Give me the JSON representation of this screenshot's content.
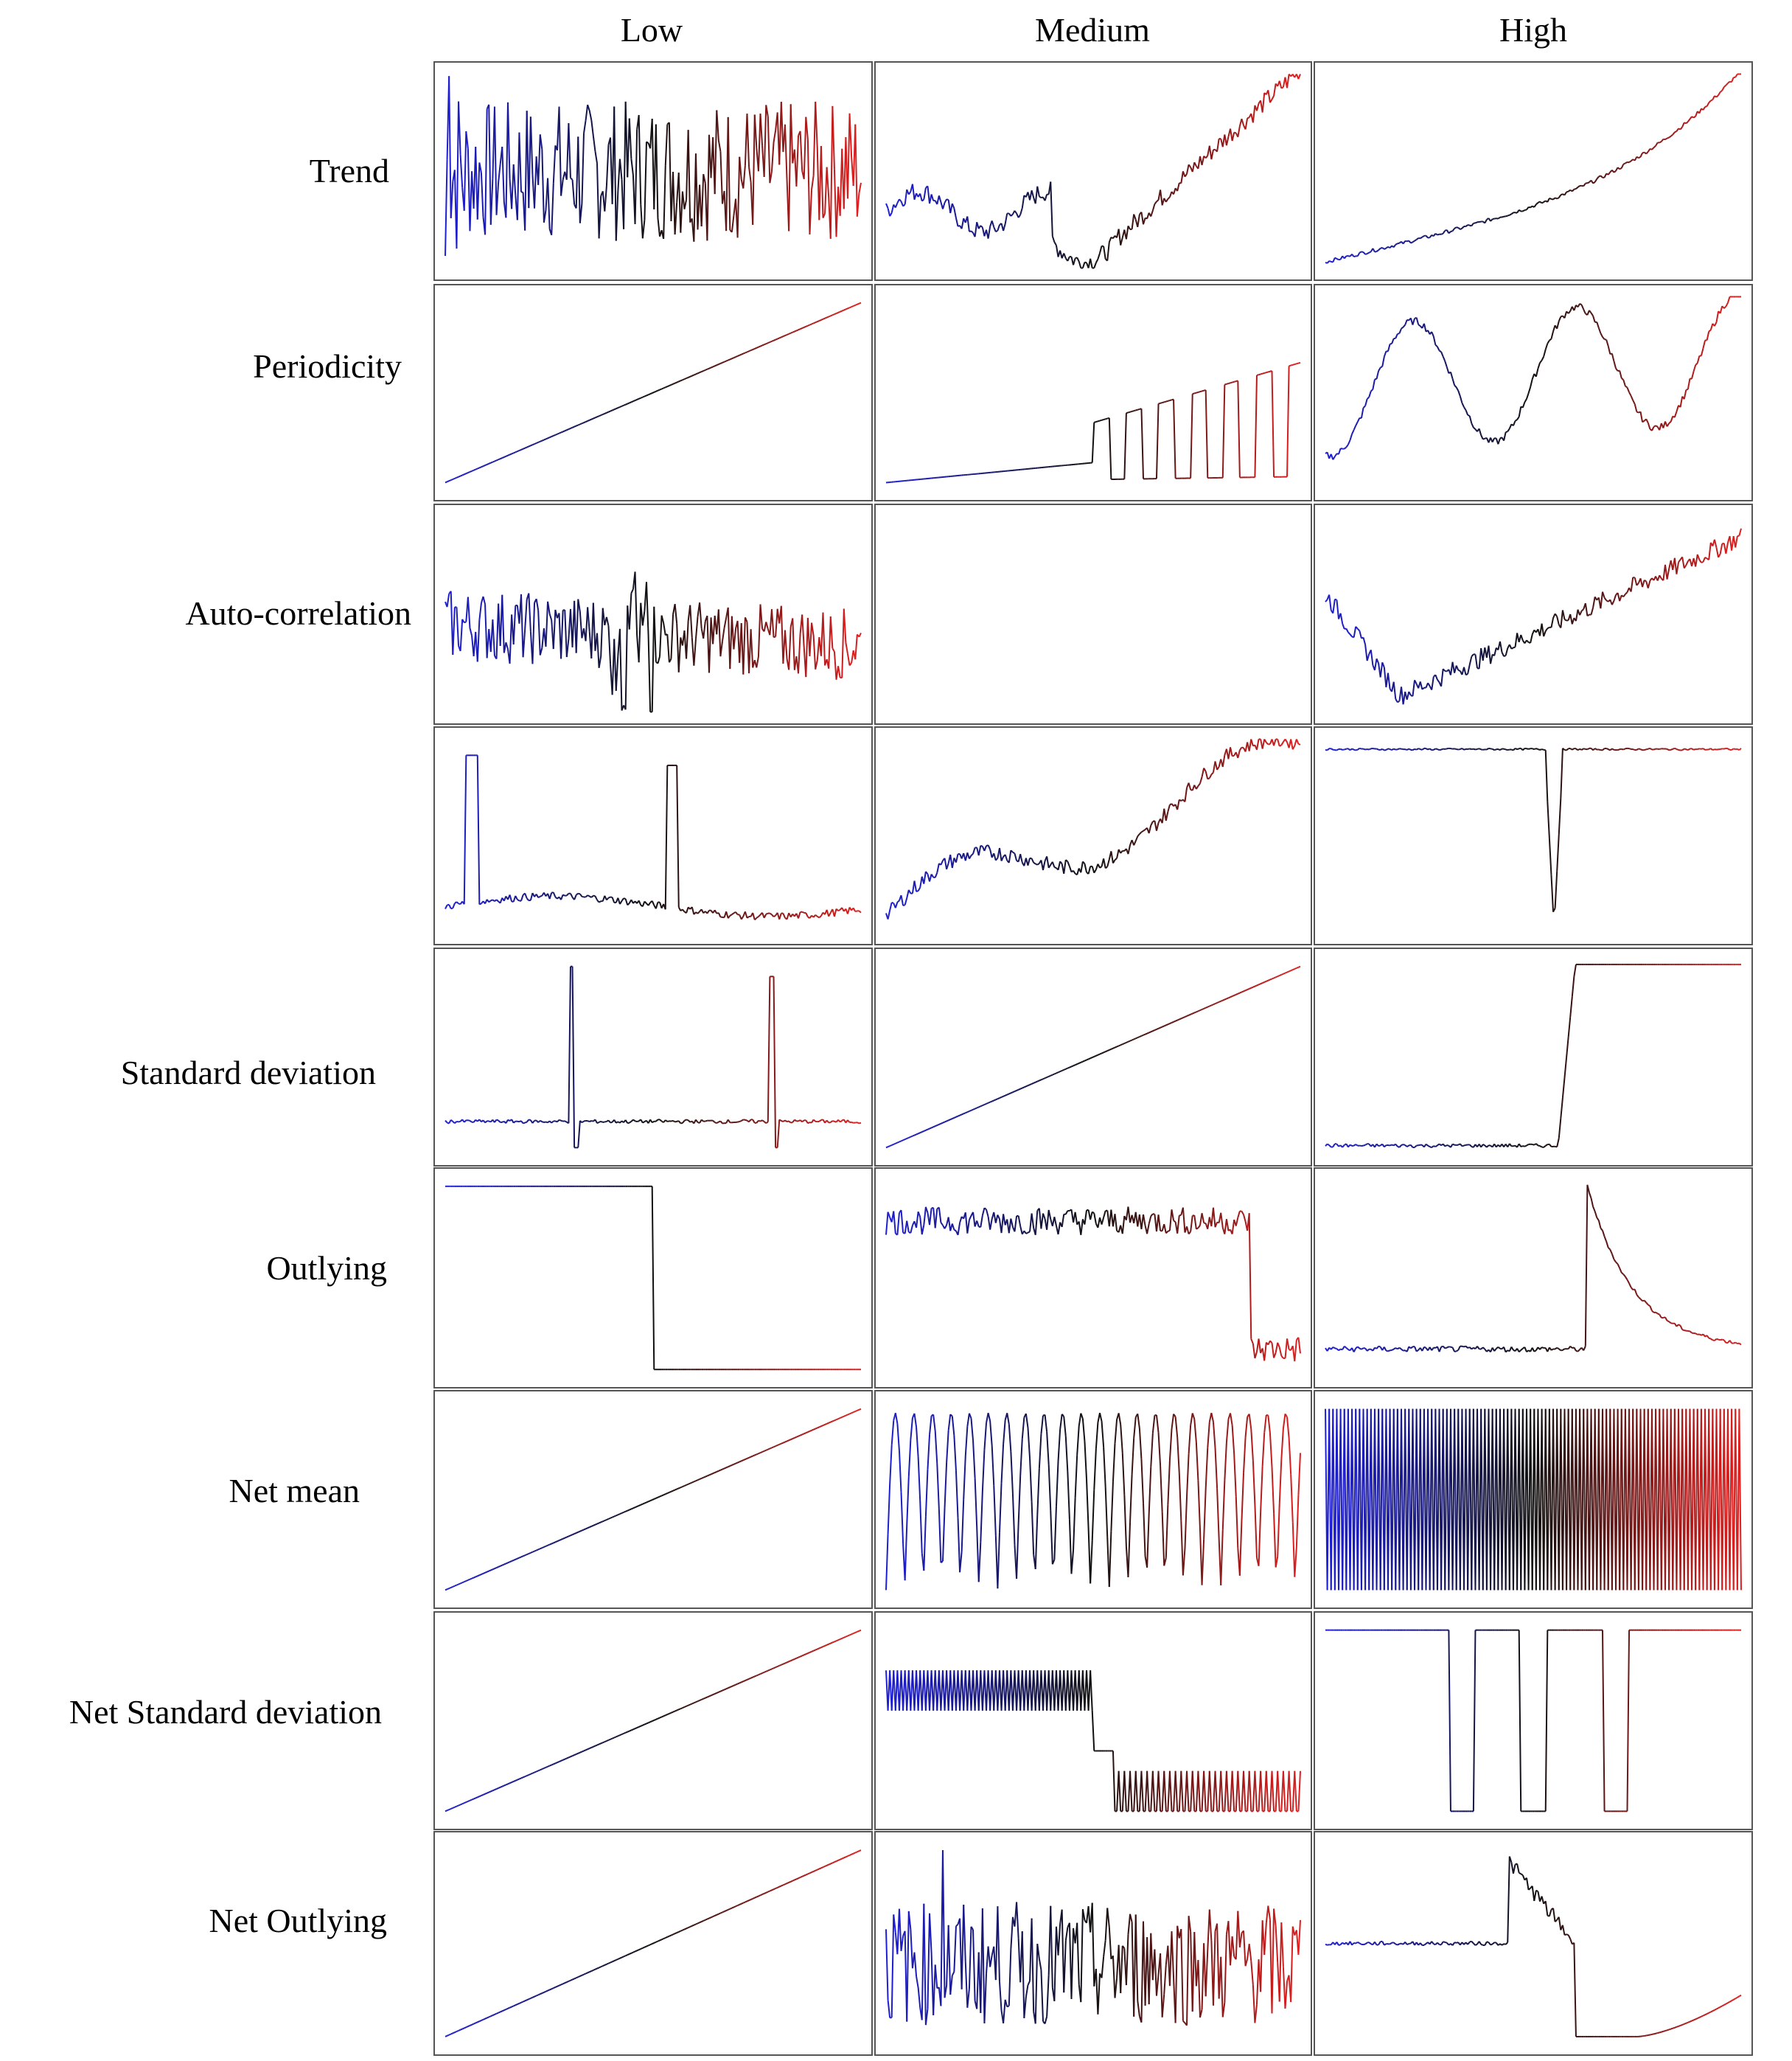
{
  "columns": [
    "Low",
    "Medium",
    "High"
  ],
  "rows": [
    "Trend",
    "Periodicity",
    "Auto-correlation",
    "",
    "Standard deviation",
    "Outlying",
    "Net mean",
    "Net Standard deviation",
    "Net Outlying"
  ],
  "colors": {
    "series_start": "#1f1fd6",
    "series_mid": "#111111",
    "series_end": "#e01f1f",
    "frame": "#555555"
  },
  "empty_cells": [
    [
      2,
      1
    ]
  ]
}
